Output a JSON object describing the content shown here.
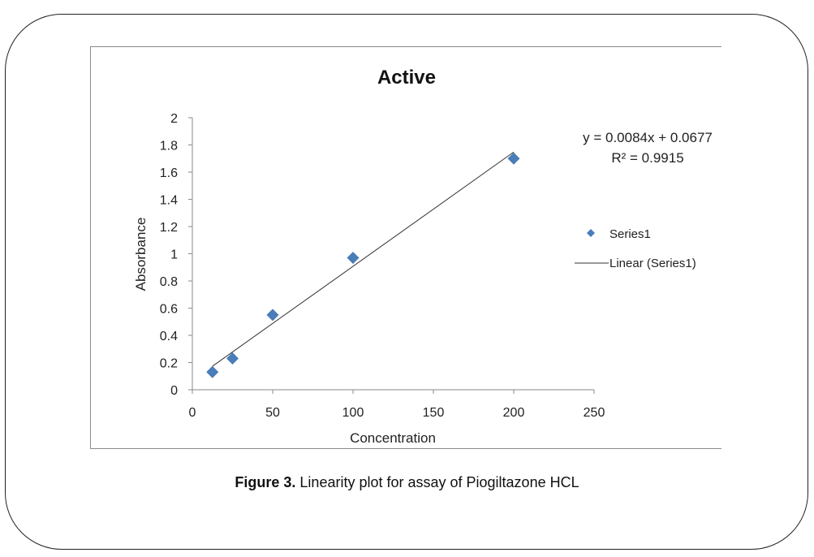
{
  "caption": {
    "label": "Figure 3.",
    "text": "Linearity plot for assay of Piogiltazone HCL"
  },
  "chart_data": {
    "type": "scatter",
    "title": "Active",
    "xlabel": "Concentration",
    "ylabel": "Absorbance",
    "xlim": [
      0,
      250
    ],
    "ylim": [
      0,
      2
    ],
    "x_ticks": [
      0,
      50,
      100,
      150,
      200,
      250
    ],
    "y_ticks": [
      0,
      0.2,
      0.4,
      0.6,
      0.8,
      1,
      1.2,
      1.4,
      1.6,
      1.8,
      2
    ],
    "grid": false,
    "series": [
      {
        "name": "Series1",
        "color": "#4a7ebb",
        "marker": "diamond",
        "points": [
          {
            "x": 12.5,
            "y": 0.13
          },
          {
            "x": 25,
            "y": 0.23
          },
          {
            "x": 50,
            "y": 0.55
          },
          {
            "x": 100,
            "y": 0.97
          },
          {
            "x": 200,
            "y": 1.7
          }
        ]
      }
    ],
    "trendline": {
      "name": "Linear (Series1)",
      "color": "#333333",
      "slope": 0.0084,
      "intercept": 0.0677,
      "x_range": [
        12.5,
        200
      ],
      "equation": "y = 0.0084x + 0.0677",
      "r2": "R² = 0.9915"
    },
    "legend": {
      "position": "right",
      "items": [
        "Series1",
        "Linear (Series1)"
      ]
    }
  }
}
